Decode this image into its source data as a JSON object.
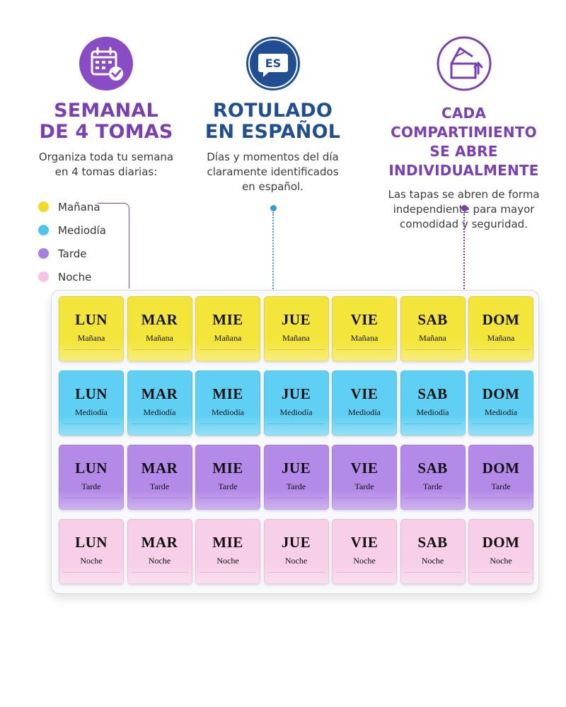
{
  "features": [
    {
      "icon": "calendar-check-icon",
      "title_line1": "SEMANAL",
      "title_line2": "DE 4 TOMAS",
      "desc_line1": "Organiza toda tu semana",
      "desc_line2": "en 4 tomas diarias:",
      "color": "#7a3fb3"
    },
    {
      "icon": "es-speech-bubble-icon",
      "badge": "ES",
      "title_line1": "ROTULADO",
      "title_line2": "EN ESPAÑOL",
      "desc_line1": "Días y momentos del día",
      "desc_line2": "claramente identificados",
      "desc_line3": "en español.",
      "color": "#1f4e93"
    },
    {
      "icon": "open-box-icon",
      "title_line1": "CADA COMPARTIMIENTO",
      "title_line2": "SE ABRE INDIVIDUALMENTE",
      "desc_line1": "Las tapas se abren de forma",
      "desc_line2": "independiente para mayor",
      "desc_line3": "comodidad y seguridad.",
      "color": "#7a3fb3"
    }
  ],
  "legend": [
    {
      "label": "Mañana",
      "color": "#f2dc1f"
    },
    {
      "label": "Mediodía",
      "color": "#4cc6ef"
    },
    {
      "label": "Tarde",
      "color": "#a77de0"
    },
    {
      "label": "Noche",
      "color": "#f6c3e3"
    }
  ],
  "organizer": {
    "days": [
      "LUN",
      "MAR",
      "MIE",
      "JUE",
      "VIE",
      "SAB",
      "DOM"
    ],
    "rows": [
      {
        "label": "Mañana",
        "color": "#f4e53a"
      },
      {
        "label": "Mediodía",
        "color": "#5fd0f3"
      },
      {
        "label": "Tarde",
        "color": "#b48ae8"
      },
      {
        "label": "Noche",
        "color": "#f7cfe8"
      }
    ]
  }
}
